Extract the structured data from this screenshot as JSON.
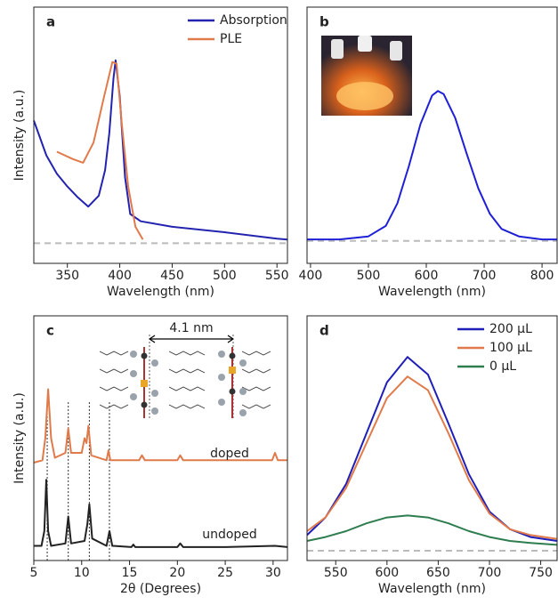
{
  "chart_data": [
    {
      "type": "line",
      "panel_label": "a",
      "xlabel": "Wavelength (nm)",
      "ylabel": "Intensity (a.u.)",
      "xlim": [
        318,
        560
      ],
      "ylim": [
        -0.11,
        1.29
      ],
      "xticks": [
        350,
        400,
        450,
        500,
        550
      ],
      "baseline": 0,
      "legend": "top-right",
      "series": [
        {
          "name": "Absorption",
          "color": "#2323b0",
          "x": [
            318,
            330,
            340,
            350,
            360,
            370,
            380,
            386,
            390,
            394,
            396,
            400,
            405,
            410,
            420,
            450,
            500,
            550,
            560
          ],
          "values": [
            0.67,
            0.48,
            0.38,
            0.31,
            0.25,
            0.2,
            0.26,
            0.4,
            0.6,
            0.9,
            1.0,
            0.8,
            0.36,
            0.16,
            0.12,
            0.09,
            0.06,
            0.025,
            0.02
          ]
        },
        {
          "name": "PLE",
          "color": "#e07a4a",
          "x": [
            340,
            355,
            365,
            375,
            385,
            390,
            393,
            397,
            402,
            408,
            415,
            422
          ],
          "values": [
            0.5,
            0.46,
            0.44,
            0.55,
            0.8,
            0.92,
            0.99,
            0.98,
            0.65,
            0.31,
            0.09,
            0.02
          ]
        }
      ]
    },
    {
      "type": "line",
      "panel_label": "b",
      "xlabel": "Wavelength (nm)",
      "xlim": [
        394,
        826
      ],
      "ylim": [
        -0.15,
        1.56
      ],
      "xticks": [
        400,
        500,
        600,
        700,
        800
      ],
      "baseline": 0,
      "series": [
        {
          "name": null,
          "color": "#1f1fd6",
          "x": [
            394,
            450,
            500,
            530,
            550,
            570,
            590,
            610,
            620,
            630,
            650,
            670,
            690,
            710,
            730,
            760,
            800,
            826
          ],
          "values": [
            0.01,
            0.01,
            0.03,
            0.1,
            0.25,
            0.5,
            0.78,
            0.97,
            1.0,
            0.98,
            0.82,
            0.58,
            0.35,
            0.18,
            0.08,
            0.03,
            0.01,
            0.01
          ]
        }
      ]
    },
    {
      "type": "line",
      "panel_label": "c",
      "xlabel": "2θ (Degrees)",
      "ylabel": "Intensity (a.u.)",
      "xlim": [
        5,
        31.5
      ],
      "ylim": [
        0,
        1
      ],
      "xticks": [
        5,
        10,
        15,
        20,
        25,
        30
      ],
      "guides": [
        6.4,
        8.6,
        10.8,
        12.9
      ],
      "annotations": [
        "4.1 nm",
        "doped",
        "undoped"
      ],
      "series": [
        {
          "name": "doped",
          "color": "#e07a4a",
          "x": [
            5,
            5.9,
            6.2,
            6.5,
            6.8,
            7.2,
            8.3,
            8.6,
            8.9,
            10,
            10.3,
            10.5,
            10.7,
            11,
            12.6,
            12.8,
            13,
            16,
            16.3,
            16.6,
            20,
            20.3,
            20.6,
            26,
            29.9,
            30.2,
            30.5,
            31.5
          ],
          "values": [
            0.4,
            0.41,
            0.5,
            0.7,
            0.5,
            0.42,
            0.44,
            0.54,
            0.44,
            0.44,
            0.5,
            0.48,
            0.55,
            0.43,
            0.41,
            0.45,
            0.41,
            0.41,
            0.43,
            0.41,
            0.41,
            0.43,
            0.41,
            0.41,
            0.41,
            0.44,
            0.41,
            0.41
          ]
        },
        {
          "name": "undoped",
          "color": "#222222",
          "x": [
            5,
            5.8,
            6.1,
            6.3,
            6.5,
            6.8,
            8.3,
            8.6,
            8.9,
            10.3,
            10.6,
            10.8,
            11.1,
            12.6,
            12.9,
            13.2,
            15.2,
            15.4,
            15.6,
            20,
            20.3,
            20.6,
            25,
            30.2,
            31.5
          ],
          "values": [
            0.06,
            0.06,
            0.12,
            0.33,
            0.12,
            0.06,
            0.07,
            0.18,
            0.07,
            0.08,
            0.15,
            0.23,
            0.09,
            0.06,
            0.12,
            0.06,
            0.055,
            0.065,
            0.055,
            0.055,
            0.07,
            0.055,
            0.055,
            0.06,
            0.055
          ]
        }
      ]
    },
    {
      "type": "line",
      "panel_label": "d",
      "xlabel": "Wavelength (nm)",
      "xlim": [
        522,
        766
      ],
      "ylim": [
        -0.05,
        1.2
      ],
      "xticks": [
        550,
        600,
        650,
        700,
        750
      ],
      "baseline": 0,
      "legend": "top-right",
      "series": [
        {
          "name": "200 μL",
          "color": "#1f1fb8",
          "x": [
            522,
            540,
            560,
            580,
            600,
            620,
            640,
            660,
            680,
            700,
            720,
            740,
            766
          ],
          "values": [
            0.08,
            0.17,
            0.34,
            0.6,
            0.86,
            0.99,
            0.9,
            0.65,
            0.39,
            0.2,
            0.11,
            0.07,
            0.05
          ]
        },
        {
          "name": "100 μL",
          "color": "#e07a4a",
          "x": [
            522,
            540,
            560,
            580,
            600,
            620,
            640,
            660,
            680,
            700,
            720,
            740,
            766
          ],
          "values": [
            0.1,
            0.17,
            0.32,
            0.55,
            0.78,
            0.89,
            0.82,
            0.6,
            0.36,
            0.19,
            0.11,
            0.08,
            0.06
          ]
        },
        {
          "name": "0 μL",
          "color": "#2e7d4f",
          "x": [
            522,
            540,
            560,
            580,
            600,
            620,
            640,
            660,
            680,
            700,
            720,
            740,
            766
          ],
          "values": [
            0.05,
            0.07,
            0.1,
            0.14,
            0.17,
            0.18,
            0.17,
            0.14,
            0.1,
            0.07,
            0.05,
            0.04,
            0.03
          ]
        }
      ]
    }
  ]
}
